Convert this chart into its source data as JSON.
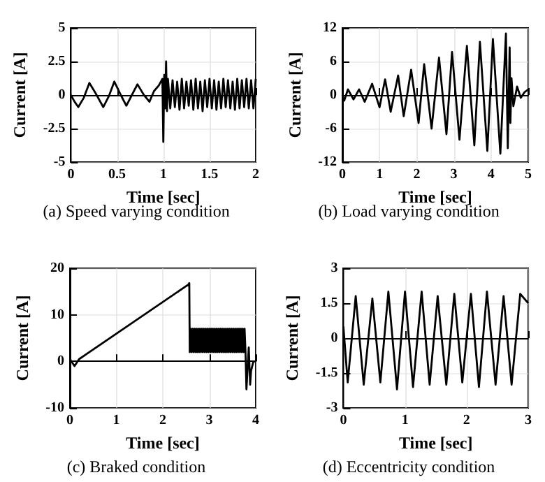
{
  "chart_data": [
    {
      "type": "line",
      "title": "(a) Speed varying condition",
      "xlabel": "Time [sec]",
      "ylabel": "Current [A]",
      "xlim": [
        0,
        2
      ],
      "xticks": [
        0,
        0.5,
        1,
        1.5,
        2
      ],
      "ylim": [
        -5,
        5
      ],
      "yticks": [
        -5,
        -2.5,
        0,
        2.5,
        5
      ],
      "grid": true,
      "marker": "none",
      "line_style": "solid",
      "series": [
        {
          "color": "#000000",
          "x": [
            0,
            0.04,
            0.08,
            0.14,
            0.2,
            0.27,
            0.35,
            0.41,
            0.47,
            0.54,
            0.6,
            0.66,
            0.72,
            0.79,
            0.85,
            0.9,
            0.95,
            0.99,
            1.0,
            1.01,
            1.02,
            1.03,
            1.04,
            1.05,
            1.075,
            1.1,
            1.125,
            1.15,
            1.175,
            1.2,
            1.225,
            1.25,
            1.275,
            1.3,
            1.325,
            1.35,
            1.375,
            1.4,
            1.425,
            1.45,
            1.475,
            1.5,
            1.525,
            1.55,
            1.575,
            1.6,
            1.625,
            1.65,
            1.675,
            1.7,
            1.725,
            1.75,
            1.775,
            1.8,
            1.825,
            1.85,
            1.875,
            1.9,
            1.925,
            1.95,
            1.975,
            2.0
          ],
          "values": [
            0,
            -0.5,
            -0.9,
            -0.2,
            0.9,
            0.1,
            -0.9,
            -0.1,
            1.0,
            0,
            -0.8,
            0,
            0.8,
            0,
            -0.5,
            0.3,
            0.7,
            1.2,
            -3.5,
            1.5,
            -1,
            2.5,
            -1.2,
            1.2,
            -1.0,
            1.1,
            -0.9,
            1.0,
            -1.1,
            1.2,
            -1.0,
            1.0,
            -0.8,
            1.1,
            -1.1,
            1.2,
            -1.0,
            1.0,
            -1.2,
            1.1,
            -0.9,
            1.2,
            -1.0,
            1.1,
            -1.1,
            1.0,
            -1.0,
            1.2,
            -0.9,
            1.1,
            -1.0,
            1.0,
            -1.1,
            1.2,
            -1.0,
            1.1,
            -0.9,
            1.2,
            -1.0,
            1.1,
            -1.0,
            1.2
          ]
        }
      ]
    },
    {
      "type": "line",
      "title": "(b) Load varying condition",
      "xlabel": "Time [sec]",
      "ylabel": "Current [A]",
      "xlim": [
        0,
        5
      ],
      "xticks": [
        0,
        1,
        2,
        3,
        4,
        5
      ],
      "ylim": [
        -12,
        12
      ],
      "yticks": [
        -12,
        -6,
        0,
        6,
        12
      ],
      "grid": true,
      "marker": "none",
      "line_style": "solid",
      "series": [
        {
          "color": "#000000",
          "x": [
            0,
            0.05,
            0.15,
            0.3,
            0.45,
            0.6,
            0.8,
            1.0,
            1.15,
            1.3,
            1.5,
            1.65,
            1.85,
            2.05,
            2.2,
            2.4,
            2.6,
            2.8,
            2.95,
            3.15,
            3.35,
            3.55,
            3.7,
            3.9,
            4.05,
            4.25,
            4.4,
            4.45,
            4.5,
            4.52,
            4.55,
            4.6,
            4.7,
            4.8,
            4.9,
            5.0
          ],
          "values": [
            0,
            -1,
            1,
            -0.8,
            1,
            -1.2,
            2,
            -2.2,
            2.8,
            -3,
            3.5,
            -3.8,
            4.5,
            -5,
            5.5,
            -6,
            6.7,
            -7,
            7.7,
            -8,
            8.8,
            -9,
            9.5,
            -10,
            10,
            -10.5,
            11,
            -9.5,
            8.5,
            -5,
            3,
            -2,
            1.5,
            -0.5,
            0.5,
            1
          ]
        }
      ]
    },
    {
      "type": "line",
      "title": "(c) Braked condition",
      "xlabel": "Time [sec]",
      "ylabel": "Current [A]",
      "xlim": [
        0,
        4
      ],
      "xticks": [
        0,
        1,
        2,
        3,
        4
      ],
      "ylim": [
        -10,
        20
      ],
      "yticks": [
        -10,
        0,
        10,
        20
      ],
      "grid": true,
      "marker": "none",
      "line_style": "solid",
      "series": [
        {
          "color": "#000000",
          "x": [
            0,
            0.1,
            0.2,
            2.55,
            2.57,
            2.58,
            2.6,
            2.62,
            2.64,
            2.66,
            2.68,
            2.7,
            2.72,
            2.74,
            2.76,
            2.78,
            2.8,
            2.82,
            2.84,
            2.86,
            2.88,
            2.9,
            2.92,
            2.94,
            2.96,
            2.98,
            3.0,
            3.02,
            3.04,
            3.06,
            3.08,
            3.1,
            3.12,
            3.14,
            3.16,
            3.18,
            3.2,
            3.22,
            3.24,
            3.26,
            3.28,
            3.3,
            3.32,
            3.34,
            3.36,
            3.38,
            3.4,
            3.42,
            3.44,
            3.46,
            3.48,
            3.5,
            3.52,
            3.54,
            3.56,
            3.58,
            3.6,
            3.62,
            3.64,
            3.66,
            3.68,
            3.7,
            3.72,
            3.74,
            3.76,
            3.78,
            3.8,
            3.85,
            3.88,
            3.9,
            3.95,
            4.0
          ],
          "values": [
            0.5,
            -1,
            0.5,
            16.5,
            16.8,
            2,
            7,
            2,
            7,
            2,
            7,
            2,
            7,
            2,
            7,
            2,
            7,
            2,
            7,
            2,
            7,
            2,
            7,
            2,
            7,
            2,
            7,
            2,
            7,
            2,
            7,
            2,
            7,
            2,
            7,
            2,
            7,
            2,
            7,
            2,
            7,
            2,
            7,
            2,
            7,
            2,
            7,
            2,
            7,
            2,
            7,
            2,
            7,
            2,
            7,
            2,
            7,
            2,
            7,
            2,
            7,
            2,
            7,
            2,
            7,
            2,
            -6,
            3,
            -5,
            -2,
            0,
            0
          ]
        }
      ]
    },
    {
      "type": "line",
      "title": "(d) Eccentricity condition",
      "xlabel": "Time [sec]",
      "ylabel": "Current [A]",
      "xlim": [
        0,
        3
      ],
      "xticks": [
        0,
        1,
        2,
        3
      ],
      "ylim": [
        -3,
        3
      ],
      "yticks": [
        -3,
        -1.5,
        0,
        1.5,
        3
      ],
      "grid": true,
      "marker": "none",
      "line_style": "solid",
      "series": [
        {
          "color": "#000000",
          "x": [
            0,
            0.07,
            0.2,
            0.33,
            0.47,
            0.6,
            0.73,
            0.87,
            1.0,
            1.13,
            1.27,
            1.4,
            1.53,
            1.67,
            1.8,
            1.93,
            2.07,
            2.2,
            2.33,
            2.47,
            2.6,
            2.73,
            2.87,
            3.0
          ],
          "values": [
            0.5,
            -1.9,
            1.8,
            -2.0,
            1.7,
            -1.9,
            2.0,
            -2.2,
            2.0,
            -2.1,
            2.0,
            -2.0,
            1.8,
            -2.0,
            1.9,
            -1.9,
            1.9,
            -2.1,
            2.0,
            -2.0,
            1.8,
            -2.0,
            1.9,
            1.5
          ]
        }
      ]
    }
  ]
}
